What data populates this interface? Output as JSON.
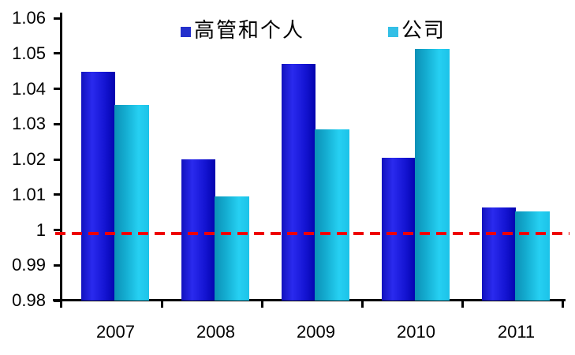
{
  "chart_data": {
    "type": "bar",
    "title": "",
    "categories": [
      "2007",
      "2008",
      "2009",
      "2010",
      "2011"
    ],
    "series": [
      {
        "key": "exec",
        "name": "高管和个人",
        "values": [
          1.0448,
          1.02,
          1.047,
          1.0204,
          1.0064
        ],
        "legend_color": "#2430cc",
        "gradient": [
          "#1212be",
          "#2a2aee",
          "#1414d2",
          "#0303ae"
        ]
      },
      {
        "key": "company",
        "name": "公司",
        "values": [
          1.0355,
          1.0096,
          1.0285,
          1.0512,
          1.0053
        ],
        "legend_color": "#33bfe6",
        "gradient": [
          "#0c90b6",
          "#14acd0",
          "#26d0f2",
          "#1cc2e8"
        ]
      }
    ],
    "ylim": [
      0.98,
      1.06
    ],
    "ytick_step": 0.01,
    "yticks": [
      "1.06",
      "1.05",
      "1.04",
      "1.03",
      "1.02",
      "1.01",
      "1",
      "0.99",
      "0.98"
    ],
    "reference_line": {
      "value": 0.999,
      "style": "dashed",
      "color": "#ee0000"
    },
    "legend_position": "top",
    "grid": false,
    "axis_color": "#000000"
  }
}
